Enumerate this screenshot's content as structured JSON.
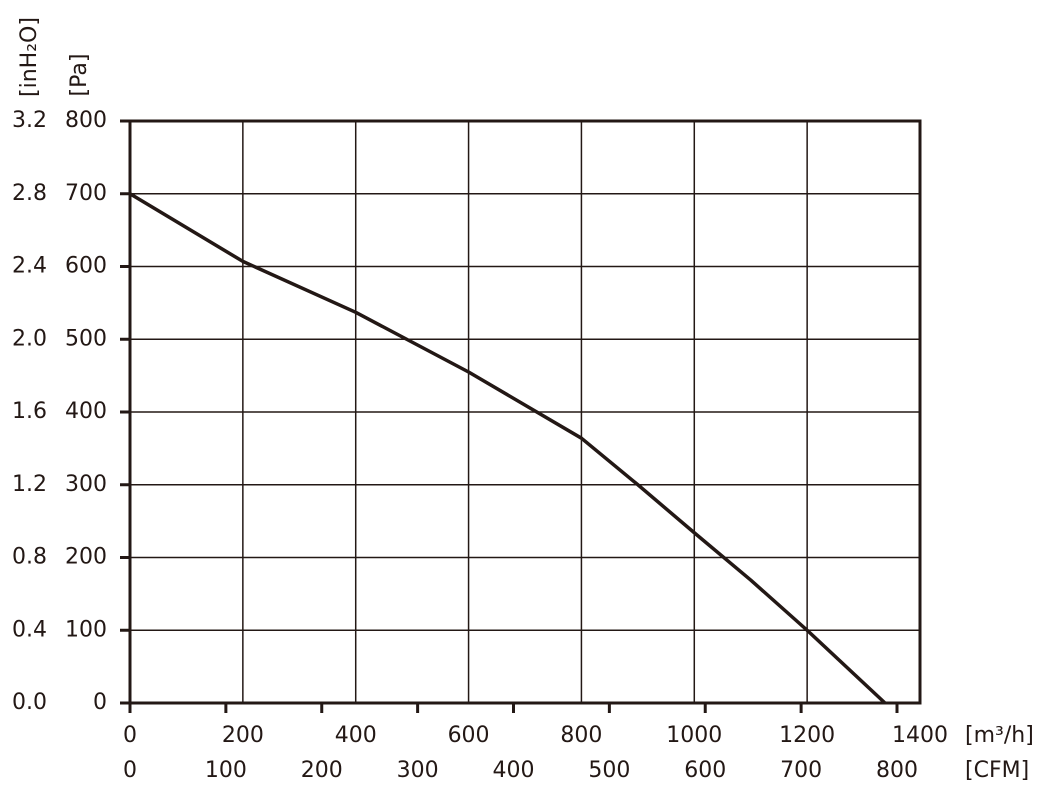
{
  "chart_data": {
    "type": "line",
    "x_label": "[m³/h]",
    "x2_label": "[CFM]",
    "y_label": "[Pa]",
    "y2_label": "[inH₂O]",
    "x": [
      0,
      200,
      400,
      600,
      800,
      900,
      1000,
      1100,
      1200,
      1338
    ],
    "series": [
      {
        "color": "#231815",
        "values": [
          700,
          607,
          537,
          455,
          364,
          300,
          234,
          169,
          100,
          0
        ]
      }
    ],
    "xlim": [
      0,
      1400
    ],
    "xticks": [
      0,
      200,
      400,
      600,
      800,
      1000,
      1200,
      1400
    ],
    "x2lim": [
      0,
      824
    ],
    "x2ticks": [
      0,
      100,
      200,
      300,
      400,
      500,
      600,
      700,
      800
    ],
    "ylim": [
      0,
      800
    ],
    "yticks": [
      0,
      100,
      200,
      300,
      400,
      500,
      600,
      700,
      800
    ],
    "y2lim": [
      0,
      3.2
    ],
    "y2ticks": [
      {
        "value": 0,
        "label": "0.0"
      },
      0.4,
      0.8,
      1.2,
      1.6,
      {
        "value": 2,
        "label": "2.0"
      },
      2.4,
      2.8,
      3.2
    ],
    "grid": true
  }
}
